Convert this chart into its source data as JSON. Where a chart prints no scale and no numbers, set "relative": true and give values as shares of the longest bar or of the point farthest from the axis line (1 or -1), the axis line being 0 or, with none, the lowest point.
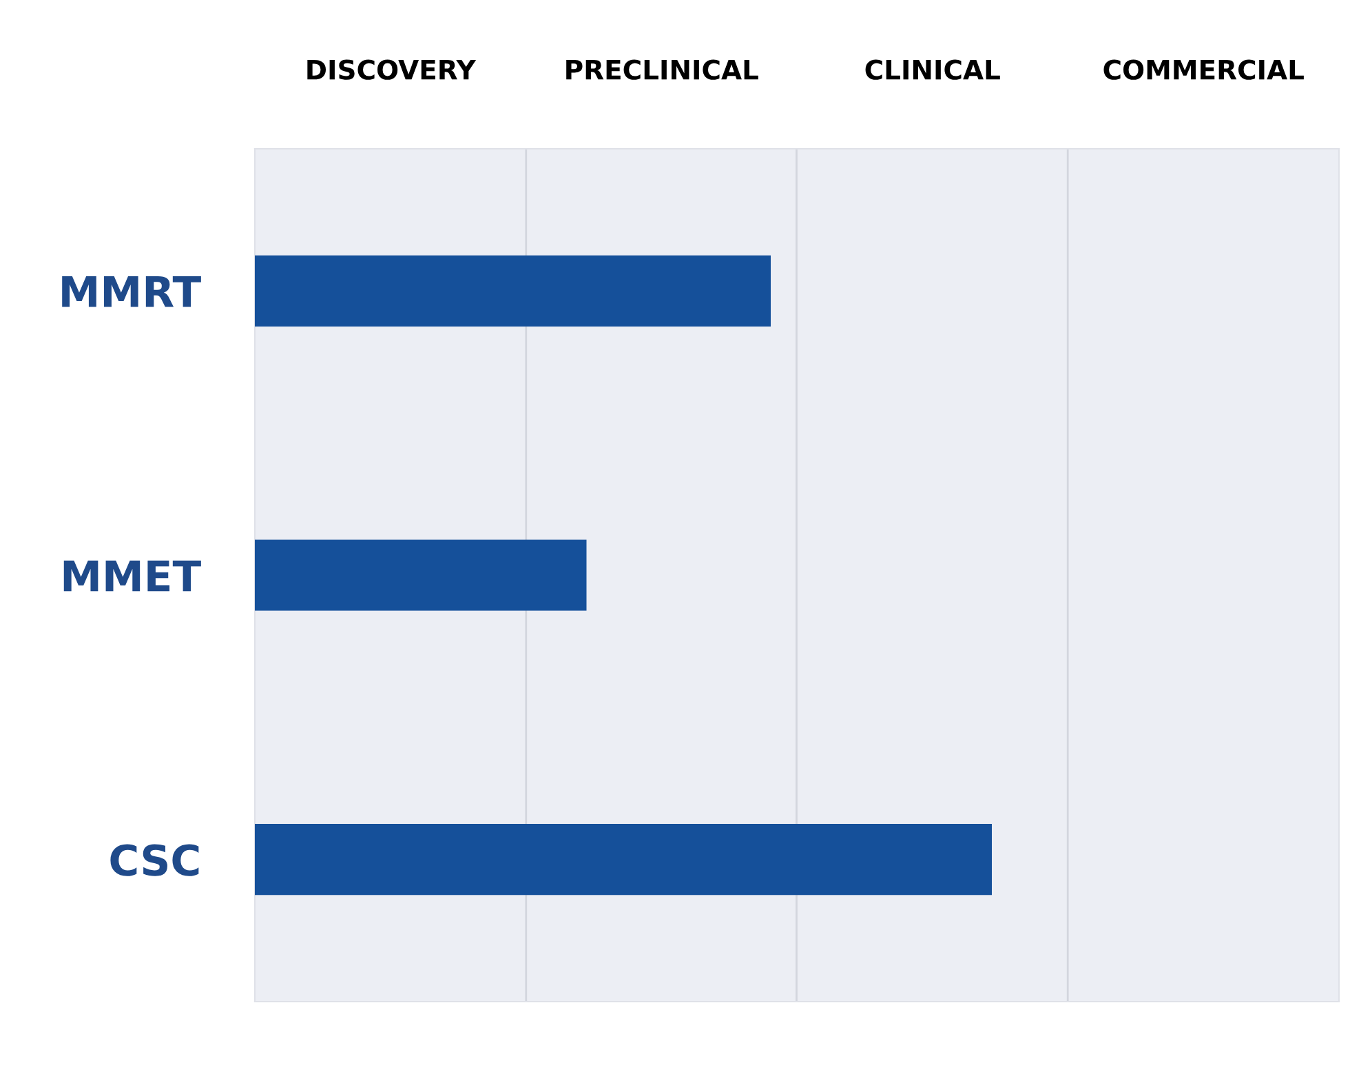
{
  "chart_data": {
    "type": "bar",
    "orientation": "horizontal",
    "relative": true,
    "categories": [
      "MMRT",
      "MMET",
      "CSC"
    ],
    "values": [
      0.7,
      0.45,
      1
    ],
    "color": "#15509a",
    "annotations": [
      "DISCOVERY",
      "PRECLINICAL",
      "CLINICAL",
      "COMMERCIAL"
    ],
    "ref_lines": [
      {
        "axis": "x",
        "value": 0.368,
        "color": "#d3d6de"
      },
      {
        "axis": "x",
        "value": 0.735,
        "color": "#d3d6de"
      },
      {
        "axis": "x",
        "value": 1.103,
        "color": "#d3d6de"
      }
    ],
    "legend": false
  }
}
